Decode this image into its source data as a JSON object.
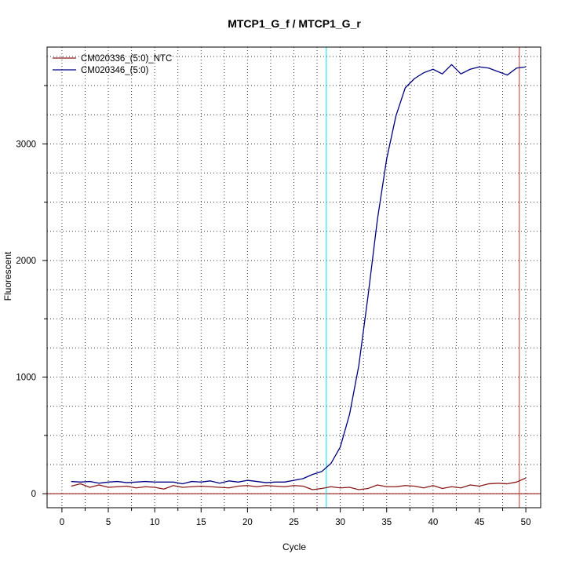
{
  "chart_data": {
    "type": "line",
    "title": "MTCP1_G_f / MTCP1_G_r",
    "xlabel": "Cycle",
    "ylabel": "Fluorescent",
    "xlim": [
      -1.6,
      51.6
    ],
    "ylim": [
      -120,
      3830
    ],
    "x_ticks": [
      "0",
      "5",
      "10",
      "15",
      "20",
      "25",
      "30",
      "35",
      "40",
      "45",
      "50"
    ],
    "y_ticks": [
      "0",
      "1000",
      "2000",
      "3000"
    ],
    "grid": true,
    "legend_position": "top-left",
    "threshold_y": 0,
    "threshold_color": "#8b0000",
    "vline_cyan_x": 28.5,
    "vline_cyan_color": "#00e5ee",
    "vline_red_x": 49.3,
    "vline_red_color": "#cd3333",
    "x": [
      1,
      2,
      3,
      4,
      5,
      6,
      7,
      8,
      9,
      10,
      11,
      12,
      13,
      14,
      15,
      16,
      17,
      18,
      19,
      20,
      21,
      22,
      23,
      24,
      25,
      26,
      27,
      28,
      29,
      30,
      31,
      32,
      33,
      34,
      35,
      36,
      37,
      38,
      39,
      40,
      41,
      42,
      43,
      44,
      45,
      46,
      47,
      48,
      49,
      50
    ],
    "series": [
      {
        "name": "CM020336_(5:0)_NTC",
        "color": "#8b1a1a",
        "values": [
          65,
          85,
          55,
          75,
          55,
          60,
          65,
          50,
          60,
          55,
          40,
          70,
          55,
          60,
          65,
          60,
          55,
          50,
          65,
          70,
          60,
          70,
          65,
          60,
          70,
          65,
          35,
          45,
          60,
          50,
          55,
          35,
          45,
          75,
          60,
          60,
          70,
          65,
          50,
          70,
          45,
          60,
          50,
          75,
          65,
          85,
          90,
          85,
          100,
          135
        ]
      },
      {
        "name": "CM020346_(5:0)",
        "color": "#000080",
        "values": [
          105,
          100,
          105,
          90,
          100,
          105,
          95,
          100,
          105,
          100,
          100,
          100,
          85,
          105,
          100,
          110,
          90,
          110,
          100,
          115,
          105,
          95,
          100,
          100,
          115,
          130,
          165,
          190,
          260,
          400,
          680,
          1100,
          1700,
          2350,
          2870,
          3240,
          3480,
          3560,
          3610,
          3640,
          3600,
          3680,
          3600,
          3640,
          3660,
          3650,
          3620,
          3590,
          3650,
          3660
        ]
      }
    ]
  }
}
